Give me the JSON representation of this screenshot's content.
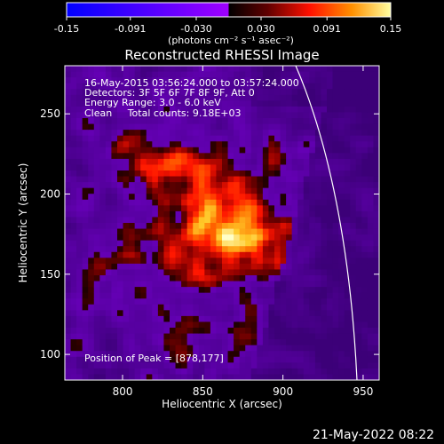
{
  "colorbar": {
    "ticks": [
      "-0.15",
      "-0.091",
      "-0.030",
      "0.030",
      "0.091",
      "0.15"
    ],
    "tick_values": [
      -0.15,
      -0.091,
      -0.03,
      0.03,
      0.091,
      0.15
    ],
    "units_label": "(photons cm⁻² s⁻¹ asec⁻²)"
  },
  "annotations": {
    "time": "16-May-2015 03:56:24.000 to 03:57:24.000",
    "detectors": "Detectors: 3F 5F 6F 7F 8F 9F, Att 0",
    "energy": "Energy Range: 3.0 - 6.0 keV",
    "clean": "Clean     Total counts: 9.18E+03",
    "peak": "Position of Peak = [878,177]"
  },
  "footer_date": "21-May-2022 08:22",
  "chart_data": {
    "type": "heatmap",
    "title": "Reconstructed RHESSI Image",
    "xlabel": "Heliocentric X (arcsec)",
    "ylabel": "Heliocentric Y (arcsec)",
    "xlim": [
      764,
      960
    ],
    "ylim": [
      84,
      280
    ],
    "xticks": [
      800,
      850,
      900,
      950
    ],
    "yticks": [
      100,
      150,
      200,
      250
    ],
    "clim": [
      -0.15,
      0.15
    ],
    "peak": [
      878,
      177
    ],
    "colors": {
      "negative_low": "#0000ff",
      "negative_high": "#a000ff",
      "positive_low": "#200000",
      "positive_mid": "#ff1000",
      "positive_high": "#ffff40",
      "max": "#ffffff"
    }
  }
}
